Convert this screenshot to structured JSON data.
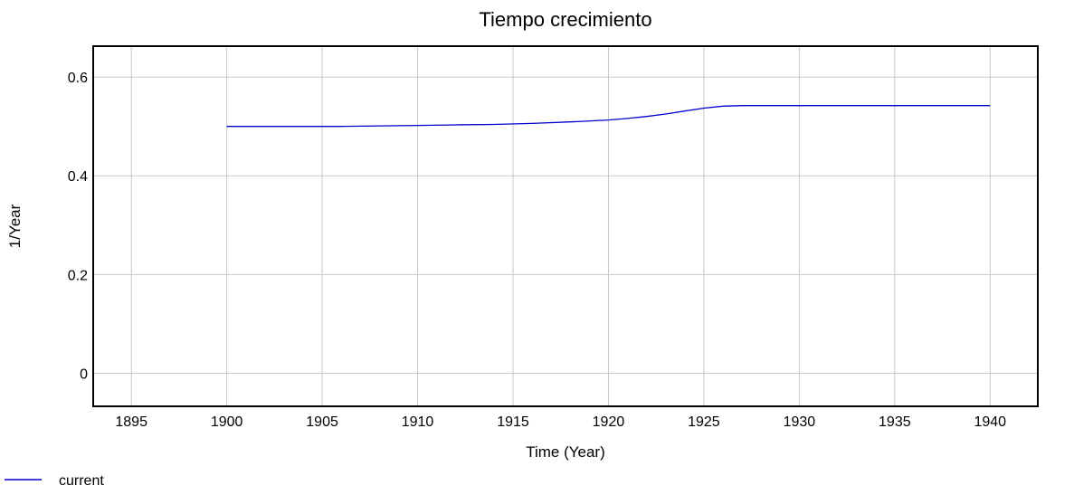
{
  "chart_data": {
    "type": "line",
    "title": "Tiempo crecimiento",
    "xlabel": "Time (Year)",
    "ylabel": "1/Year",
    "xlim": [
      1893,
      1942.5
    ],
    "ylim": [
      -0.067,
      0.6625
    ],
    "x_ticks": [
      "1895",
      "1900",
      "1905",
      "1910",
      "1915",
      "1920",
      "1925",
      "1930",
      "1935",
      "1940"
    ],
    "y_ticks": [
      "0",
      "0.2",
      "0.4",
      "0.6"
    ],
    "grid": true,
    "legend_position": "bottom-left",
    "series": [
      {
        "name": "current",
        "color": "#0000cc",
        "x": [
          1900,
          1902,
          1904,
          1906,
          1908,
          1910,
          1912,
          1914,
          1916,
          1918,
          1920,
          1921,
          1922,
          1923,
          1924,
          1925,
          1926,
          1927,
          1928,
          1930,
          1932,
          1934,
          1936,
          1938,
          1940
        ],
        "y": [
          0.5,
          0.5,
          0.5,
          0.5,
          0.501,
          0.502,
          0.503,
          0.504,
          0.506,
          0.509,
          0.513,
          0.516,
          0.52,
          0.525,
          0.531,
          0.537,
          0.541,
          0.542,
          0.542,
          0.542,
          0.542,
          0.542,
          0.542,
          0.542,
          0.542
        ]
      }
    ]
  }
}
